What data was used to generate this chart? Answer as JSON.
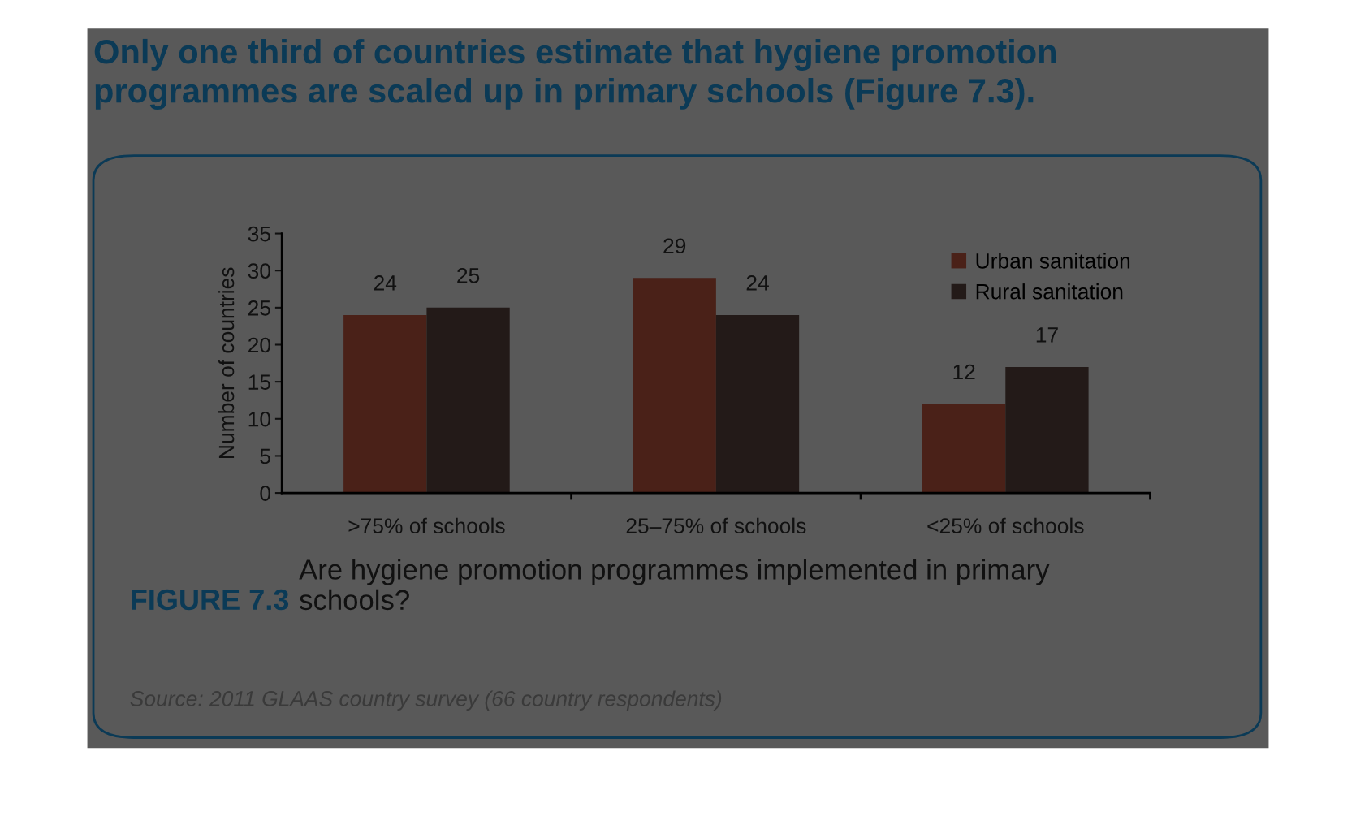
{
  "chart_data": {
    "type": "bar",
    "title": "Only one third of countries estimate that hygiene promotion programmes are scaled up in primary schools (Figure 7.3).",
    "ylabel": "Number of countries",
    "categories": [
      ">75% of schools",
      "25–75% of schools",
      "<25% of schools"
    ],
    "series": [
      {
        "name": "Urban sanitation",
        "color": "#4a2118",
        "values": [
          24,
          29,
          12
        ]
      },
      {
        "name": "Rural sanitation",
        "color": "#231a18",
        "values": [
          25,
          24,
          17
        ]
      }
    ],
    "ylim": [
      0,
      35
    ],
    "yticks": [
      0,
      5,
      10,
      15,
      20,
      25,
      30,
      35
    ],
    "data_labels": true,
    "legend": "top right",
    "grid": false,
    "annotations": [
      "FIGURE 7.3",
      "Are hygiene promotion programmes implemented in primary schools?",
      "Source: 2011 GLAAS country survey (66 country respondents)"
    ]
  }
}
